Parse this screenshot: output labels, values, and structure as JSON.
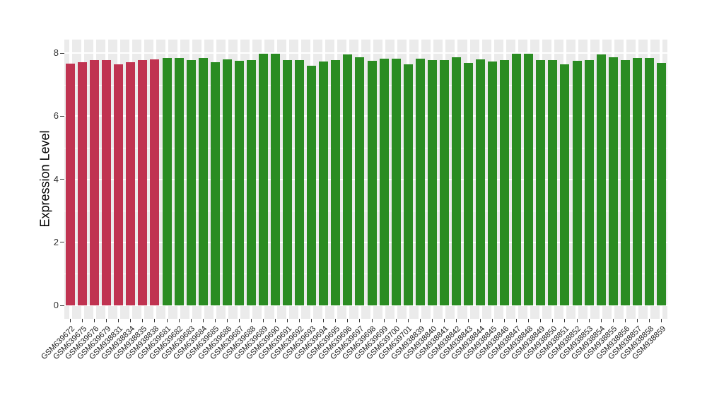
{
  "chart_data": {
    "type": "bar",
    "title": "",
    "xlabel": "",
    "ylabel": "Expression Level",
    "ylim": [
      0,
      8
    ],
    "yticks": [
      0,
      2,
      4,
      6,
      8
    ],
    "yticks_minor": [
      1,
      3,
      5,
      7
    ],
    "grid": true,
    "legend": false,
    "panel_background": "#EBEBEB",
    "gridline_color": "#FFFFFF",
    "axis_text_color": "#333333",
    "group_colors": {
      "red": "#C03351",
      "green": "#2A8C22"
    },
    "samples": [
      {
        "id": "GSM639672",
        "value": 7.66,
        "group": "red"
      },
      {
        "id": "GSM639675",
        "value": 7.72,
        "group": "red"
      },
      {
        "id": "GSM639676",
        "value": 7.78,
        "group": "red"
      },
      {
        "id": "GSM639679",
        "value": 7.78,
        "group": "red"
      },
      {
        "id": "GSM938831",
        "value": 7.64,
        "group": "red"
      },
      {
        "id": "GSM938834",
        "value": 7.72,
        "group": "red"
      },
      {
        "id": "GSM938835",
        "value": 7.79,
        "group": "red"
      },
      {
        "id": "GSM938838",
        "value": 7.8,
        "group": "red"
      },
      {
        "id": "GSM639681",
        "value": 7.85,
        "group": "green"
      },
      {
        "id": "GSM639682",
        "value": 7.85,
        "group": "green"
      },
      {
        "id": "GSM639683",
        "value": 7.78,
        "group": "green"
      },
      {
        "id": "GSM639684",
        "value": 7.85,
        "group": "green"
      },
      {
        "id": "GSM639685",
        "value": 7.71,
        "group": "green"
      },
      {
        "id": "GSM639686",
        "value": 7.8,
        "group": "green"
      },
      {
        "id": "GSM639687",
        "value": 7.75,
        "group": "green"
      },
      {
        "id": "GSM639688",
        "value": 7.77,
        "group": "green"
      },
      {
        "id": "GSM639689",
        "value": 7.98,
        "group": "green"
      },
      {
        "id": "GSM639690",
        "value": 7.99,
        "group": "green"
      },
      {
        "id": "GSM639691",
        "value": 7.79,
        "group": "green"
      },
      {
        "id": "GSM639692",
        "value": 7.77,
        "group": "green"
      },
      {
        "id": "GSM639693",
        "value": 7.61,
        "group": "green"
      },
      {
        "id": "GSM639694",
        "value": 7.74,
        "group": "green"
      },
      {
        "id": "GSM639695",
        "value": 7.78,
        "group": "green"
      },
      {
        "id": "GSM639696",
        "value": 7.95,
        "group": "green"
      },
      {
        "id": "GSM639697",
        "value": 7.86,
        "group": "green"
      },
      {
        "id": "GSM639698",
        "value": 7.76,
        "group": "green"
      },
      {
        "id": "GSM639699",
        "value": 7.83,
        "group": "green"
      },
      {
        "id": "GSM639700",
        "value": 7.83,
        "group": "green"
      },
      {
        "id": "GSM639701",
        "value": 7.65,
        "group": "green"
      },
      {
        "id": "GSM938839",
        "value": 7.83,
        "group": "green"
      },
      {
        "id": "GSM938840",
        "value": 7.77,
        "group": "green"
      },
      {
        "id": "GSM938841",
        "value": 7.78,
        "group": "green"
      },
      {
        "id": "GSM938842",
        "value": 7.86,
        "group": "green"
      },
      {
        "id": "GSM938843",
        "value": 7.7,
        "group": "green"
      },
      {
        "id": "GSM938844",
        "value": 7.81,
        "group": "green"
      },
      {
        "id": "GSM938845",
        "value": 7.74,
        "group": "green"
      },
      {
        "id": "GSM938846",
        "value": 7.77,
        "group": "green"
      },
      {
        "id": "GSM938847",
        "value": 7.98,
        "group": "green"
      },
      {
        "id": "GSM938848",
        "value": 7.99,
        "group": "green"
      },
      {
        "id": "GSM938849",
        "value": 7.79,
        "group": "green"
      },
      {
        "id": "GSM938850",
        "value": 7.79,
        "group": "green"
      },
      {
        "id": "GSM938851",
        "value": 7.65,
        "group": "green"
      },
      {
        "id": "GSM938852",
        "value": 7.75,
        "group": "green"
      },
      {
        "id": "GSM938853",
        "value": 7.79,
        "group": "green"
      },
      {
        "id": "GSM938854",
        "value": 7.95,
        "group": "green"
      },
      {
        "id": "GSM938855",
        "value": 7.86,
        "group": "green"
      },
      {
        "id": "GSM938856",
        "value": 7.77,
        "group": "green"
      },
      {
        "id": "GSM938857",
        "value": 7.84,
        "group": "green"
      },
      {
        "id": "GSM938858",
        "value": 7.84,
        "group": "green"
      },
      {
        "id": "GSM938859",
        "value": 7.68,
        "group": "green"
      }
    ]
  }
}
